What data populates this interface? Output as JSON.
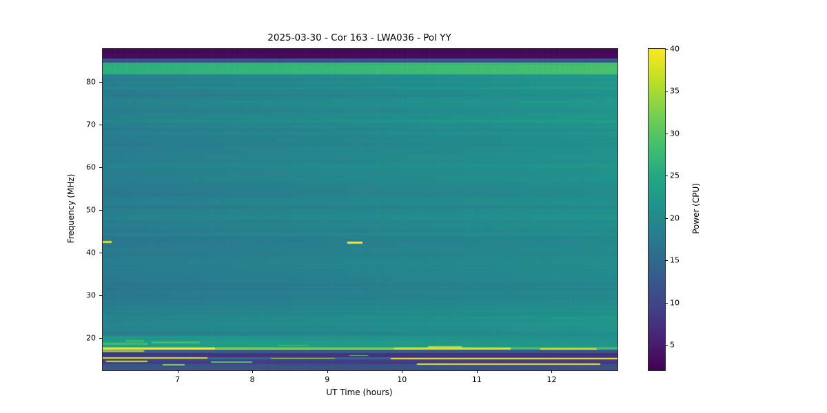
{
  "title": "2025-03-30 - Cor 163 - LWA036 - Pol YY",
  "xlabel": "UT Time (hours)",
  "ylabel": "Frequency (MHz)",
  "colorbar_label": "Power (CPU)",
  "chart_data": {
    "type": "heatmap",
    "title": "2025-03-30 - Cor 163 - LWA036 - Pol YY",
    "xlabel": "UT Time (hours)",
    "ylabel": "Frequency (MHz)",
    "colorbar_label": "Power (CPU)",
    "x_range": [
      6.0,
      12.88
    ],
    "y_range": [
      12.5,
      87.65
    ],
    "value_range": [
      2,
      40
    ],
    "x_ticks": [
      7,
      8,
      9,
      10,
      11,
      12
    ],
    "y_ticks": [
      20,
      30,
      40,
      50,
      60,
      70,
      80
    ],
    "colorbar_ticks": [
      5,
      10,
      15,
      20,
      25,
      30,
      35,
      40
    ],
    "colormap_name": "viridis",
    "colormap_stops": [
      [
        68,
        1,
        84
      ],
      [
        72,
        36,
        117
      ],
      [
        65,
        68,
        135
      ],
      [
        53,
        95,
        141
      ],
      [
        42,
        120,
        142
      ],
      [
        33,
        145,
        140
      ],
      [
        34,
        168,
        132
      ],
      [
        68,
        191,
        112
      ],
      [
        122,
        209,
        81
      ],
      [
        189,
        223,
        38
      ],
      [
        253,
        231,
        37
      ]
    ],
    "background": {
      "base": 17.3,
      "time_gradient": 2.6,
      "freq_gradient": {
        "f_start": 38,
        "f_end": 85,
        "amount": 2.4
      },
      "low_freq_bump": {
        "center": 22,
        "sigma2": 18,
        "amount": 1.5
      },
      "stripes": [
        {
          "f": 24.8,
          "w": 0.35,
          "dv": 1.4
        },
        {
          "f": 28.5,
          "w": 0.3,
          "dv": 0.8
        },
        {
          "f": 31.9,
          "w": 0.3,
          "dv": 1.0
        },
        {
          "f": 36.0,
          "w": 0.3,
          "dv": 0.7
        },
        {
          "f": 44.3,
          "w": 0.35,
          "dv": 1.2
        },
        {
          "f": 48.0,
          "w": 0.3,
          "dv": 0.6
        },
        {
          "f": 51.5,
          "w": 0.3,
          "dv": 0.8
        },
        {
          "f": 57.2,
          "w": 0.3,
          "dv": 0.7
        },
        {
          "f": 62.4,
          "w": 0.35,
          "dv": 1.0
        },
        {
          "f": 66.0,
          "w": 0.3,
          "dv": 0.7
        },
        {
          "f": 70.8,
          "w": 0.3,
          "dv": 0.8
        },
        {
          "f": 75.3,
          "w": 0.35,
          "dv": 1.0
        },
        {
          "f": 78.6,
          "w": 0.3,
          "dv": 0.8
        }
      ]
    },
    "bands": [
      {
        "f0": 85.4,
        "f1": 87.65,
        "v0": 3.0,
        "v1": 3.0
      },
      {
        "f0": 84.4,
        "f1": 85.4,
        "v0": 11.0,
        "v1": 12.0
      },
      {
        "f0": 81.7,
        "f1": 84.4,
        "v0": 25.5,
        "v1": 28.5
      },
      {
        "f0": 19.4,
        "f1": 20.6,
        "v0": 22.0,
        "v1": 21.0
      },
      {
        "f0": 17.9,
        "f1": 19.4,
        "v0": 23.5,
        "v1": 22.0
      },
      {
        "f0": 17.25,
        "f1": 17.9,
        "v0": 30.0,
        "v1": 28.0
      },
      {
        "f0": 16.5,
        "f1": 17.25,
        "v0": 13.0,
        "v1": 12.0
      },
      {
        "f0": 15.55,
        "f1": 16.5,
        "v0": 7.5,
        "v1": 7.0
      },
      {
        "f0": 15.0,
        "f1": 15.55,
        "v0": 15.0,
        "v1": 14.0
      },
      {
        "f0": 13.9,
        "f1": 15.0,
        "v0": 9.0,
        "v1": 8.5
      },
      {
        "f0": 12.5,
        "f1": 13.9,
        "v0": 12.0,
        "v1": 11.0
      }
    ],
    "dashes": [
      {
        "t0": 9.27,
        "t1": 9.47,
        "f": 42.3,
        "hw": 0.22,
        "v": 40
      },
      {
        "t0": 6.0,
        "t1": 6.12,
        "f": 42.5,
        "hw": 0.22,
        "v": 38
      },
      {
        "t0": 6.0,
        "t1": 7.5,
        "f": 17.55,
        "hw": 0.22,
        "v": 40
      },
      {
        "t0": 7.5,
        "t1": 9.9,
        "f": 17.5,
        "hw": 0.15,
        "v": 34
      },
      {
        "t0": 9.9,
        "t1": 11.45,
        "f": 17.55,
        "hw": 0.2,
        "v": 38
      },
      {
        "t0": 11.85,
        "t1": 12.6,
        "f": 17.5,
        "hw": 0.18,
        "v": 39
      },
      {
        "t0": 10.35,
        "t1": 10.8,
        "f": 17.95,
        "hw": 0.2,
        "v": 36
      },
      {
        "t0": 6.0,
        "t1": 6.55,
        "f": 17.05,
        "hw": 0.15,
        "v": 36
      },
      {
        "t0": 6.0,
        "t1": 6.6,
        "f": 18.7,
        "hw": 0.3,
        "v": 28
      },
      {
        "t0": 6.65,
        "t1": 7.3,
        "f": 18.95,
        "hw": 0.25,
        "v": 28
      },
      {
        "t0": 6.3,
        "t1": 6.55,
        "f": 19.35,
        "hw": 0.2,
        "v": 27
      },
      {
        "t0": 8.35,
        "t1": 8.75,
        "f": 18.3,
        "hw": 0.18,
        "v": 27
      },
      {
        "t0": 6.0,
        "t1": 7.4,
        "f": 15.35,
        "hw": 0.16,
        "v": 38
      },
      {
        "t0": 8.25,
        "t1": 9.1,
        "f": 15.3,
        "hw": 0.13,
        "v": 35
      },
      {
        "t0": 9.85,
        "t1": 12.88,
        "f": 15.2,
        "hw": 0.18,
        "v": 40
      },
      {
        "t0": 6.05,
        "t1": 6.6,
        "f": 14.55,
        "hw": 0.15,
        "v": 37
      },
      {
        "t0": 7.45,
        "t1": 8.0,
        "f": 14.45,
        "hw": 0.12,
        "v": 30
      },
      {
        "t0": 10.2,
        "t1": 12.65,
        "f": 14.0,
        "hw": 0.18,
        "v": 39
      },
      {
        "t0": 6.8,
        "t1": 7.1,
        "f": 13.8,
        "hw": 0.13,
        "v": 33
      },
      {
        "t0": 9.3,
        "t1": 9.55,
        "f": 16.0,
        "hw": 0.12,
        "v": 30
      }
    ],
    "noise": {
      "row_amp": 0.9,
      "col_amp": 0.25
    }
  }
}
